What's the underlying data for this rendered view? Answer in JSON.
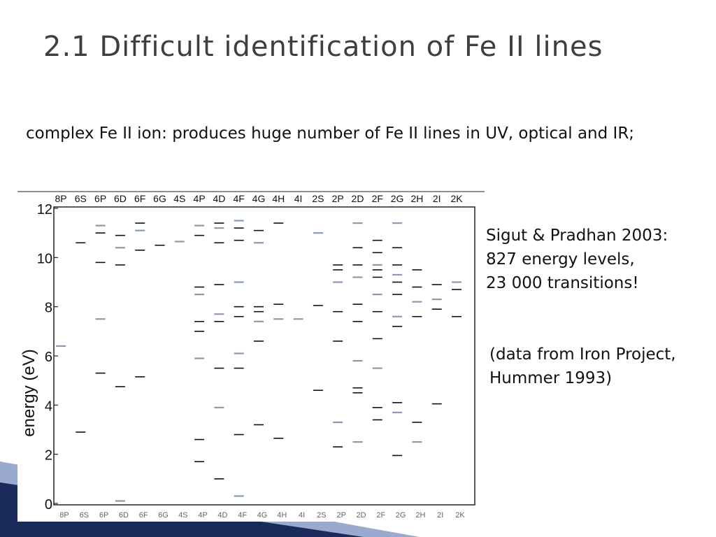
{
  "slide": {
    "title": "2.1 Difficult identification of Fe II lines",
    "intro": "complex Fe II ion: produces huge number of Fe II lines in UV, optical and IR;",
    "reference1": [
      "Sigut & Pradhan 2003:",
      "827 energy levels,",
      "23 000 transitions!"
    ],
    "reference2": [
      "(data from Iron Project,",
      "Hummer 1993)"
    ]
  },
  "colors": {
    "title": "#3f3f3f",
    "corner_dark": "#1a2a5a",
    "corner_light": "#9aa9cf",
    "level_dark": "#111111",
    "level_light": "#8a9ab5"
  },
  "chart_data": {
    "type": "scatter",
    "description_kind": "Grotrian energy-level diagram",
    "categories": [
      "8P",
      "6S",
      "6P",
      "6D",
      "6F",
      "6G",
      "4S",
      "4P",
      "4D",
      "4F",
      "4G",
      "4H",
      "4I",
      "2S",
      "2P",
      "2D",
      "2F",
      "2G",
      "2H",
      "2I",
      "2K"
    ],
    "ylabel": "energy (eV)",
    "ylim": [
      0,
      12
    ],
    "yticks": [
      0,
      2,
      4,
      6,
      8,
      10,
      12
    ],
    "grid": false,
    "levels": {
      "8P": [
        6.4
      ],
      "6S": [
        2.9,
        10.6
      ],
      "6P": [
        5.3,
        7.5,
        9.8,
        11.0,
        11.3
      ],
      "6D": [
        0.1,
        4.75,
        9.7,
        10.4,
        10.9
      ],
      "6F": [
        5.15,
        10.3,
        11.1,
        11.4
      ],
      "6G": [
        10.5
      ],
      "4S": [
        10.65
      ],
      "4P": [
        1.7,
        2.6,
        5.9,
        7.0,
        7.4,
        8.5,
        8.8,
        10.9,
        11.3
      ],
      "4D": [
        1.0,
        3.9,
        5.5,
        7.4,
        7.7,
        8.9,
        10.6,
        11.2,
        11.4
      ],
      "4F": [
        0.3,
        2.8,
        5.5,
        6.1,
        7.6,
        8.0,
        9.0,
        10.7,
        11.2,
        11.5
      ],
      "4G": [
        3.2,
        6.6,
        7.4,
        7.8,
        8.0,
        10.6,
        11.1
      ],
      "4H": [
        2.65,
        7.5,
        8.1,
        11.4
      ],
      "4I": [
        7.5
      ],
      "2S": [
        4.6,
        8.05,
        11.0
      ],
      "2P": [
        2.3,
        3.3,
        6.6,
        7.8,
        9.0,
        9.5,
        9.7
      ],
      "2D": [
        2.5,
        4.5,
        4.7,
        5.8,
        7.4,
        8.1,
        9.2,
        9.7,
        10.4,
        11.4
      ],
      "2F": [
        3.4,
        3.9,
        5.5,
        6.7,
        7.8,
        8.5,
        9.2,
        9.5,
        9.7,
        10.2,
        10.7
      ],
      "2G": [
        1.95,
        3.7,
        4.1,
        7.2,
        7.6,
        8.5,
        9.0,
        9.3,
        9.7,
        10.4,
        11.4
      ],
      "2H": [
        2.5,
        3.3,
        7.6,
        8.2,
        8.8,
        9.5
      ],
      "2I": [
        4.05,
        7.9,
        8.3,
        8.9
      ],
      "2K": [
        7.6,
        9.0,
        8.7
      ]
    }
  }
}
